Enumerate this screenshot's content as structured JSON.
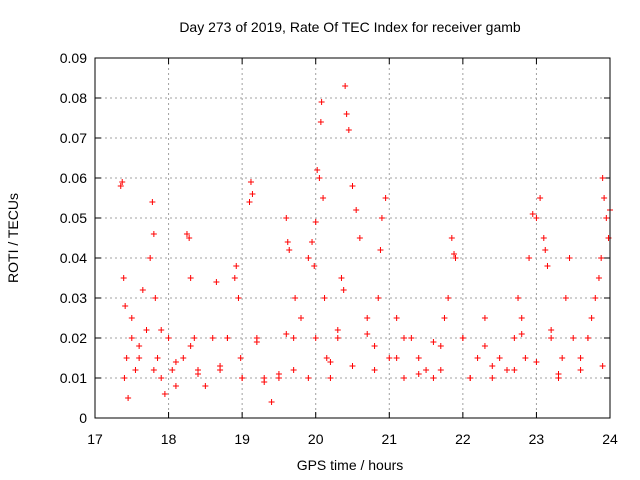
{
  "chart_data": {
    "type": "scatter",
    "title": "Day 273 of 2019, Rate Of TEC Index for receiver gamb",
    "xlabel": "GPS time / hours",
    "ylabel": "ROTI / TECUs",
    "xlim": [
      17,
      24
    ],
    "ylim": [
      0,
      0.09
    ],
    "xticks": [
      17,
      18,
      19,
      20,
      21,
      22,
      23,
      24
    ],
    "yticks": [
      0,
      0.01,
      0.02,
      0.03,
      0.04,
      0.05,
      0.06,
      0.07,
      0.08,
      0.09
    ],
    "ytick_labels": [
      "0",
      "0.01",
      "0.02",
      "0.03",
      "0.04",
      "0.05",
      "0.06",
      "0.07",
      "0.08",
      "0.09"
    ],
    "grid": true,
    "marker": "+",
    "color": "#ff0000",
    "series": [
      {
        "name": "ROTI",
        "x": [
          17.35,
          17.37,
          17.39,
          17.41,
          17.43,
          17.45,
          17.5,
          17.55,
          17.6,
          17.65,
          17.7,
          17.75,
          17.78,
          17.8,
          17.82,
          17.85,
          17.9,
          17.95,
          18.0,
          18.05,
          18.1,
          18.2,
          18.25,
          18.28,
          18.3,
          18.35,
          18.4,
          18.5,
          18.6,
          18.65,
          18.7,
          18.8,
          18.9,
          18.92,
          18.95,
          18.98,
          19.0,
          19.1,
          19.12,
          19.14,
          19.2,
          19.3,
          19.4,
          19.5,
          19.6,
          19.62,
          19.64,
          19.7,
          19.72,
          19.8,
          19.9,
          19.95,
          19.98,
          20.0,
          20.02,
          20.05,
          20.07,
          20.08,
          20.1,
          20.12,
          20.15,
          20.2,
          20.3,
          20.35,
          20.38,
          20.4,
          20.42,
          20.45,
          20.5,
          20.55,
          20.6,
          20.7,
          20.8,
          20.85,
          20.88,
          20.9,
          20.95,
          21.0,
          21.1,
          21.2,
          21.3,
          21.4,
          21.5,
          21.6,
          21.7,
          21.75,
          21.8,
          21.85,
          21.88,
          21.9,
          22.0,
          22.1,
          22.2,
          22.3,
          22.4,
          22.5,
          22.6,
          22.7,
          22.75,
          22.8,
          22.85,
          22.9,
          22.95,
          23.0,
          23.05,
          23.1,
          23.12,
          23.15,
          23.2,
          23.3,
          23.35,
          23.4,
          23.45,
          23.5,
          23.6,
          23.7,
          23.75,
          23.8,
          23.85,
          23.88,
          23.9,
          23.92,
          23.95,
          23.98,
          24.0,
          17.4,
          17.6,
          17.8,
          18.1,
          18.4,
          18.7,
          19.0,
          19.3,
          19.5,
          19.7,
          19.9,
          20.2,
          20.5,
          20.8,
          21.1,
          21.4,
          21.7,
          22.1,
          22.4,
          22.7,
          23.0,
          23.3,
          23.6,
          23.9,
          17.5,
          17.9,
          18.3,
          18.8,
          19.2,
          19.6,
          20.0,
          20.3,
          20.7,
          21.2,
          21.6,
          22.0,
          22.3,
          22.8,
          23.2,
          23.7
        ],
        "y": [
          0.058,
          0.059,
          0.035,
          0.028,
          0.015,
          0.005,
          0.025,
          0.012,
          0.018,
          0.032,
          0.022,
          0.04,
          0.054,
          0.046,
          0.03,
          0.015,
          0.01,
          0.006,
          0.02,
          0.012,
          0.008,
          0.015,
          0.046,
          0.045,
          0.035,
          0.02,
          0.012,
          0.008,
          0.02,
          0.034,
          0.012,
          0.02,
          0.035,
          0.038,
          0.03,
          0.015,
          0.01,
          0.054,
          0.059,
          0.056,
          0.02,
          0.01,
          0.004,
          0.01,
          0.05,
          0.044,
          0.042,
          0.02,
          0.03,
          0.025,
          0.04,
          0.044,
          0.038,
          0.049,
          0.062,
          0.06,
          0.074,
          0.079,
          0.055,
          0.03,
          0.015,
          0.01,
          0.02,
          0.035,
          0.032,
          0.083,
          0.076,
          0.072,
          0.058,
          0.052,
          0.045,
          0.025,
          0.018,
          0.03,
          0.042,
          0.05,
          0.055,
          0.015,
          0.025,
          0.01,
          0.02,
          0.015,
          0.012,
          0.01,
          0.018,
          0.025,
          0.03,
          0.045,
          0.041,
          0.04,
          0.02,
          0.01,
          0.015,
          0.025,
          0.01,
          0.015,
          0.012,
          0.02,
          0.03,
          0.025,
          0.015,
          0.04,
          0.051,
          0.05,
          0.055,
          0.045,
          0.042,
          0.038,
          0.02,
          0.01,
          0.015,
          0.03,
          0.04,
          0.02,
          0.015,
          0.02,
          0.025,
          0.03,
          0.035,
          0.04,
          0.06,
          0.055,
          0.05,
          0.045,
          0.052,
          0.01,
          0.015,
          0.012,
          0.014,
          0.011,
          0.013,
          0.01,
          0.009,
          0.011,
          0.012,
          0.01,
          0.014,
          0.013,
          0.012,
          0.015,
          0.011,
          0.012,
          0.01,
          0.013,
          0.012,
          0.014,
          0.011,
          0.012,
          0.013,
          0.02,
          0.022,
          0.018,
          0.02,
          0.019,
          0.021,
          0.02,
          0.022,
          0.021,
          0.02,
          0.019,
          0.02,
          0.018,
          0.021,
          0.022,
          0.02
        ]
      }
    ]
  }
}
